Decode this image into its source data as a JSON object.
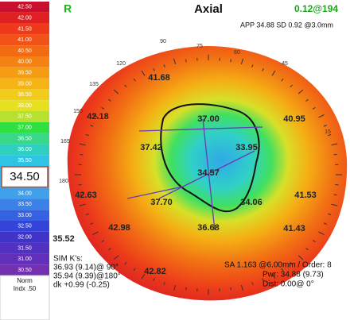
{
  "scale": {
    "rows": [
      {
        "label": "42.50",
        "color": "#c8102e"
      },
      {
        "label": "42.00",
        "color": "#e01f22"
      },
      {
        "label": "41.50",
        "color": "#ee3a1a"
      },
      {
        "label": "41.00",
        "color": "#f05218"
      },
      {
        "label": "40.50",
        "color": "#f26a12"
      },
      {
        "label": "40.00",
        "color": "#f48212"
      },
      {
        "label": "39.50",
        "color": "#f59c12"
      },
      {
        "label": "39.00",
        "color": "#f5b414"
      },
      {
        "label": "38.50",
        "color": "#f2cc1a"
      },
      {
        "label": "38.00",
        "color": "#e6e020"
      },
      {
        "label": "37.50",
        "color": "#b8e030"
      },
      {
        "label": "37.00",
        "color": "#30e040"
      },
      {
        "label": "36.50",
        "color": "#38d888"
      },
      {
        "label": "36.00",
        "color": "#30d0c0"
      },
      {
        "label": "35.50",
        "color": "#30c4e4"
      },
      {
        "label": "34.00",
        "color": "#40a0ea"
      },
      {
        "label": "33.50",
        "color": "#3a82e8"
      },
      {
        "label": "33.00",
        "color": "#3462e0"
      },
      {
        "label": "32.50",
        "color": "#3444d8"
      },
      {
        "label": "32.00",
        "color": "#4034c8"
      },
      {
        "label": "31.50",
        "color": "#5230c0"
      },
      {
        "label": "31.00",
        "color": "#6230b8"
      },
      {
        "label": "30.50",
        "color": "#7230b0"
      }
    ],
    "selected": "34.50",
    "norm": "Norm",
    "index": "Indx .50"
  },
  "header": {
    "eye": "R",
    "title": "Axial",
    "corner": "0.12@194",
    "stats": "APP 34.88 SD 0.92 @3.0mm"
  },
  "map": {
    "angles": [
      "90",
      "75",
      "60",
      "45",
      "120",
      "135",
      "150",
      "165",
      "180",
      "15"
    ],
    "values": [
      "41.68",
      "42.18",
      "37.00",
      "40.95",
      "37.42",
      "33.95",
      "34.57",
      "42.63",
      "41.53",
      "37.70",
      "34.06",
      "42.98",
      "36.68",
      "41.43",
      "35.52",
      "42.82"
    ]
  },
  "footer": {
    "sim_title": "SIM K's:",
    "sim1": "36.93 (9.14)@ 90°",
    "sim2": "35.94 (9.39)@180°",
    "dk": "dk +0.99 (-0.25)",
    "sa": "SA 1.163 @6.00mm / Order: 8",
    "pwr": "Pwr: 34.88 (9.73)",
    "dist": "Dist: 0.00@ 0°"
  }
}
